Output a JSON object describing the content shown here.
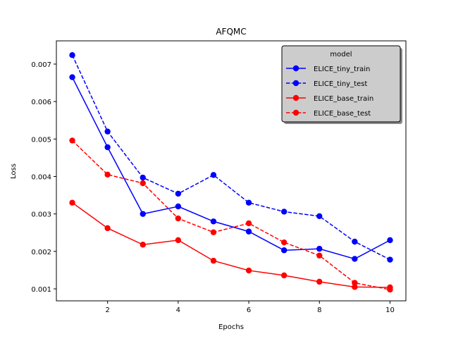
{
  "chart_data": {
    "type": "line",
    "title": "AFQMC",
    "xlabel": "Epochs",
    "ylabel": "Loss",
    "x": [
      1,
      2,
      3,
      4,
      5,
      6,
      7,
      8,
      9,
      10
    ],
    "xlim": [
      0.55,
      10.45
    ],
    "ylim": [
      0.00068,
      0.00762
    ],
    "xticks": [
      2,
      4,
      6,
      8,
      10
    ],
    "yticks": [
      0.001,
      0.002,
      0.003,
      0.004,
      0.005,
      0.006,
      0.007
    ],
    "ytick_labels": [
      "0.001",
      "0.002",
      "0.003",
      "0.004",
      "0.005",
      "0.006",
      "0.007"
    ],
    "grid": false,
    "legend": {
      "title": "model",
      "placement": "top-right"
    },
    "series": [
      {
        "name": "ELICE_tiny_train",
        "color": "#0000ff",
        "linestyle": "solid",
        "values": [
          0.00665,
          0.00478,
          0.003,
          0.0032,
          0.0028,
          0.00253,
          0.00203,
          0.00207,
          0.0018,
          0.0023
        ]
      },
      {
        "name": "ELICE_tiny_test",
        "color": "#0000ff",
        "linestyle": "dashed",
        "values": [
          0.00724,
          0.0052,
          0.00397,
          0.00354,
          0.00404,
          0.0033,
          0.00306,
          0.00294,
          0.00226,
          0.00178
        ]
      },
      {
        "name": "ELICE_base_train",
        "color": "#ff0000",
        "linestyle": "solid",
        "values": [
          0.0033,
          0.00262,
          0.00218,
          0.0023,
          0.00175,
          0.00149,
          0.00136,
          0.00119,
          0.00105,
          0.00104
        ]
      },
      {
        "name": "ELICE_base_test",
        "color": "#ff0000",
        "linestyle": "dashed",
        "values": [
          0.00496,
          0.00405,
          0.00382,
          0.00288,
          0.00251,
          0.00275,
          0.00224,
          0.00189,
          0.00116,
          0.00098
        ]
      }
    ]
  }
}
